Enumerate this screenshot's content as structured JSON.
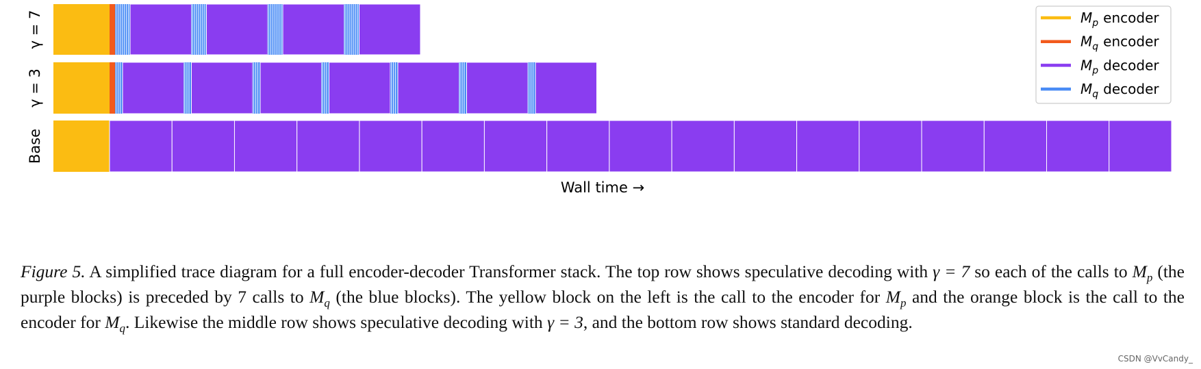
{
  "rows": [
    {
      "label": "γ = 7"
    },
    {
      "label": "γ = 3"
    },
    {
      "label": "Base"
    }
  ],
  "x_label": "Wall time →",
  "legend": [
    {
      "symbol": "M",
      "sub": "p",
      "text": "encoder"
    },
    {
      "symbol": "M",
      "sub": "q",
      "text": "encoder"
    },
    {
      "symbol": "M",
      "sub": "p",
      "text": "decoder"
    },
    {
      "symbol": "M",
      "sub": "q",
      "text": "decoder"
    }
  ],
  "caption": {
    "label": "Figure 5.",
    "runs": [
      " A simplified trace diagram for a full encoder-decoder Transformer stack. The top row shows speculative decoding with ",
      {
        "math": "γ = 7"
      },
      " so each of the calls to ",
      {
        "math": "M",
        "sub": "p"
      },
      " (the purple blocks) is preceded by 7 calls to ",
      {
        "math": "M",
        "sub": "q"
      },
      " (the blue blocks). The yellow block on the left is the call to the encoder for ",
      {
        "math": "M",
        "sub": "p"
      },
      " and the orange block is the call to the encoder for ",
      {
        "math": "M",
        "sub": "q"
      },
      ". Likewise the middle row shows speculative decoding with ",
      {
        "math": "γ = 3"
      },
      ", and the bottom row shows standard decoding."
    ]
  },
  "watermark": "CSDN @VvCandy_"
}
